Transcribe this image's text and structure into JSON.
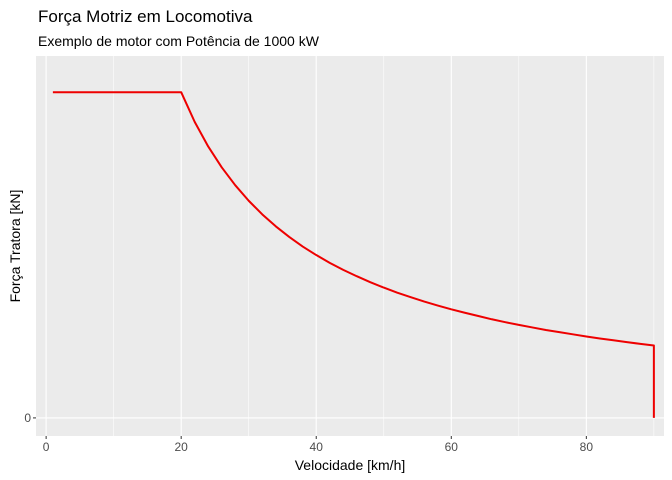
{
  "chart_data": {
    "type": "line",
    "title": "Força Motriz em Locomotiva",
    "subtitle": "Exemplo de motor com Potência de 1000 kW",
    "xlabel": "Velocidade [km/h]",
    "ylabel": "Força Tratora [kN]",
    "xlim": [
      -1.5,
      91.5
    ],
    "ylim": [
      -10,
      200
    ],
    "x_ticks": [
      0,
      20,
      40,
      60,
      80
    ],
    "y_ticks": [
      0
    ],
    "grid": true,
    "legend": "none",
    "series": [
      {
        "color": "#ee0000",
        "x": [
          1,
          20,
          22,
          24,
          26,
          28,
          30,
          32,
          34,
          36,
          38,
          40,
          42,
          44,
          46,
          48,
          50,
          52,
          54,
          56,
          58,
          60,
          62,
          64,
          66,
          68,
          70,
          72,
          74,
          76,
          78,
          80,
          82,
          84,
          86,
          88,
          90,
          90
        ],
        "y": [
          180,
          180,
          163.6,
          150,
          138.5,
          128.6,
          120,
          112.5,
          105.9,
          100,
          94.7,
          90,
          85.7,
          81.8,
          78.3,
          75,
          72,
          69.2,
          66.7,
          64.3,
          62.1,
          60,
          58.1,
          56.3,
          54.5,
          52.9,
          51.4,
          50,
          48.6,
          47.4,
          46.2,
          45,
          43.9,
          42.9,
          41.9,
          40.9,
          40,
          0
        ]
      }
    ]
  }
}
